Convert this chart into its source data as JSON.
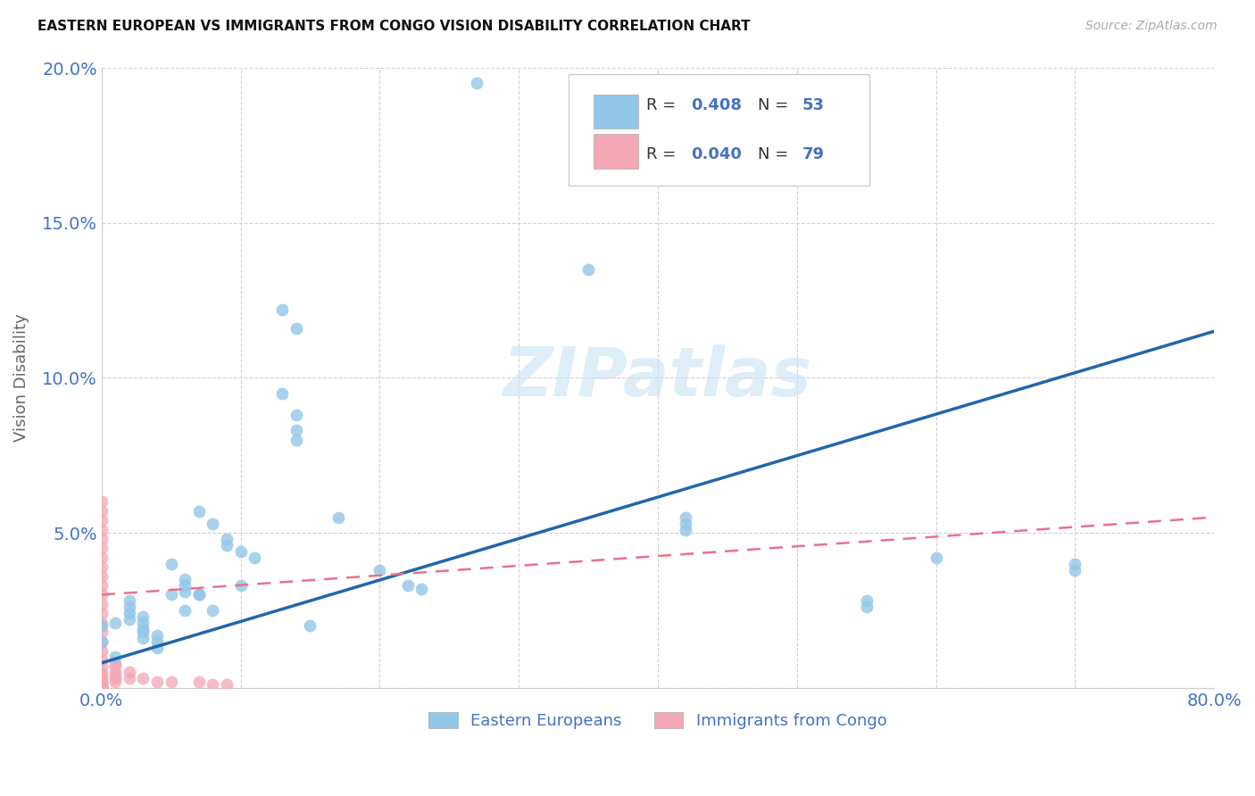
{
  "title": "EASTERN EUROPEAN VS IMMIGRANTS FROM CONGO VISION DISABILITY CORRELATION CHART",
  "source": "Source: ZipAtlas.com",
  "ylabel": "Vision Disability",
  "xlim": [
    0,
    0.8
  ],
  "ylim": [
    0,
    0.2
  ],
  "blue_R": "0.408",
  "blue_N": "53",
  "pink_R": "0.040",
  "pink_N": "79",
  "blue_color": "#93C6E8",
  "pink_color": "#F4A7B4",
  "blue_line_color": "#2166AC",
  "pink_line_color": "#E8728A",
  "watermark": "ZIPatlas",
  "tick_color": "#4472C4",
  "blue_line_x": [
    0.0,
    0.8
  ],
  "blue_line_y": [
    0.008,
    0.115
  ],
  "pink_line_x": [
    0.0,
    0.8
  ],
  "pink_line_y": [
    0.03,
    0.055
  ],
  "blue_scatter_x": [
    0.27,
    0.13,
    0.14,
    0.13,
    0.14,
    0.14,
    0.14,
    0.07,
    0.08,
    0.09,
    0.09,
    0.1,
    0.11,
    0.05,
    0.06,
    0.06,
    0.06,
    0.07,
    0.02,
    0.02,
    0.02,
    0.02,
    0.03,
    0.03,
    0.03,
    0.03,
    0.03,
    0.04,
    0.04,
    0.04,
    0.42,
    0.42,
    0.42,
    0.35,
    0.7,
    0.7,
    0.55,
    0.55,
    0.17,
    0.01,
    0.01,
    0.0,
    0.0,
    0.05,
    0.06,
    0.07,
    0.08,
    0.1,
    0.15,
    0.2,
    0.22,
    0.23,
    0.6
  ],
  "blue_scatter_y": [
    0.195,
    0.122,
    0.116,
    0.095,
    0.088,
    0.083,
    0.08,
    0.057,
    0.053,
    0.048,
    0.046,
    0.044,
    0.042,
    0.04,
    0.035,
    0.033,
    0.031,
    0.03,
    0.028,
    0.026,
    0.024,
    0.022,
    0.023,
    0.021,
    0.019,
    0.018,
    0.016,
    0.017,
    0.015,
    0.013,
    0.055,
    0.053,
    0.051,
    0.135,
    0.04,
    0.038,
    0.028,
    0.026,
    0.055,
    0.021,
    0.01,
    0.02,
    0.015,
    0.03,
    0.025,
    0.03,
    0.025,
    0.033,
    0.02,
    0.038,
    0.033,
    0.032,
    0.042
  ],
  "pink_scatter_x": [
    0.0,
    0.0,
    0.0,
    0.0,
    0.0,
    0.0,
    0.0,
    0.0,
    0.0,
    0.0,
    0.0,
    0.0,
    0.0,
    0.0,
    0.0,
    0.0,
    0.0,
    0.0,
    0.0,
    0.0,
    0.0,
    0.0,
    0.0,
    0.0,
    0.0,
    0.0,
    0.0,
    0.0,
    0.0,
    0.0,
    0.0,
    0.0,
    0.0,
    0.0,
    0.0,
    0.0,
    0.0,
    0.0,
    0.0,
    0.0,
    0.0,
    0.0,
    0.0,
    0.0,
    0.0,
    0.0,
    0.0,
    0.0,
    0.0,
    0.0,
    0.0,
    0.0,
    0.0,
    0.0,
    0.0,
    0.0,
    0.0,
    0.0,
    0.0,
    0.0,
    0.0,
    0.0,
    0.0,
    0.0,
    0.0,
    0.01,
    0.01,
    0.01,
    0.01,
    0.01,
    0.01,
    0.02,
    0.02,
    0.03,
    0.04,
    0.05,
    0.07,
    0.08,
    0.09
  ],
  "pink_scatter_y": [
    0.06,
    0.057,
    0.054,
    0.051,
    0.048,
    0.045,
    0.042,
    0.039,
    0.036,
    0.033,
    0.03,
    0.027,
    0.024,
    0.021,
    0.018,
    0.015,
    0.012,
    0.009,
    0.007,
    0.005,
    0.004,
    0.003,
    0.002,
    0.002,
    0.001,
    0.001,
    0.001,
    0.001,
    0.0,
    0.0,
    0.0,
    0.0,
    0.0,
    0.0,
    0.0,
    0.0,
    0.0,
    0.0,
    0.0,
    0.0,
    0.0,
    0.0,
    0.0,
    0.0,
    0.0,
    0.0,
    0.0,
    0.0,
    0.0,
    0.0,
    0.0,
    0.0,
    0.0,
    0.0,
    0.0,
    0.0,
    0.0,
    0.0,
    0.0,
    0.0,
    0.0,
    0.0,
    0.0,
    0.0,
    0.0,
    0.008,
    0.007,
    0.005,
    0.004,
    0.003,
    0.002,
    0.005,
    0.003,
    0.003,
    0.002,
    0.002,
    0.002,
    0.001,
    0.001
  ]
}
